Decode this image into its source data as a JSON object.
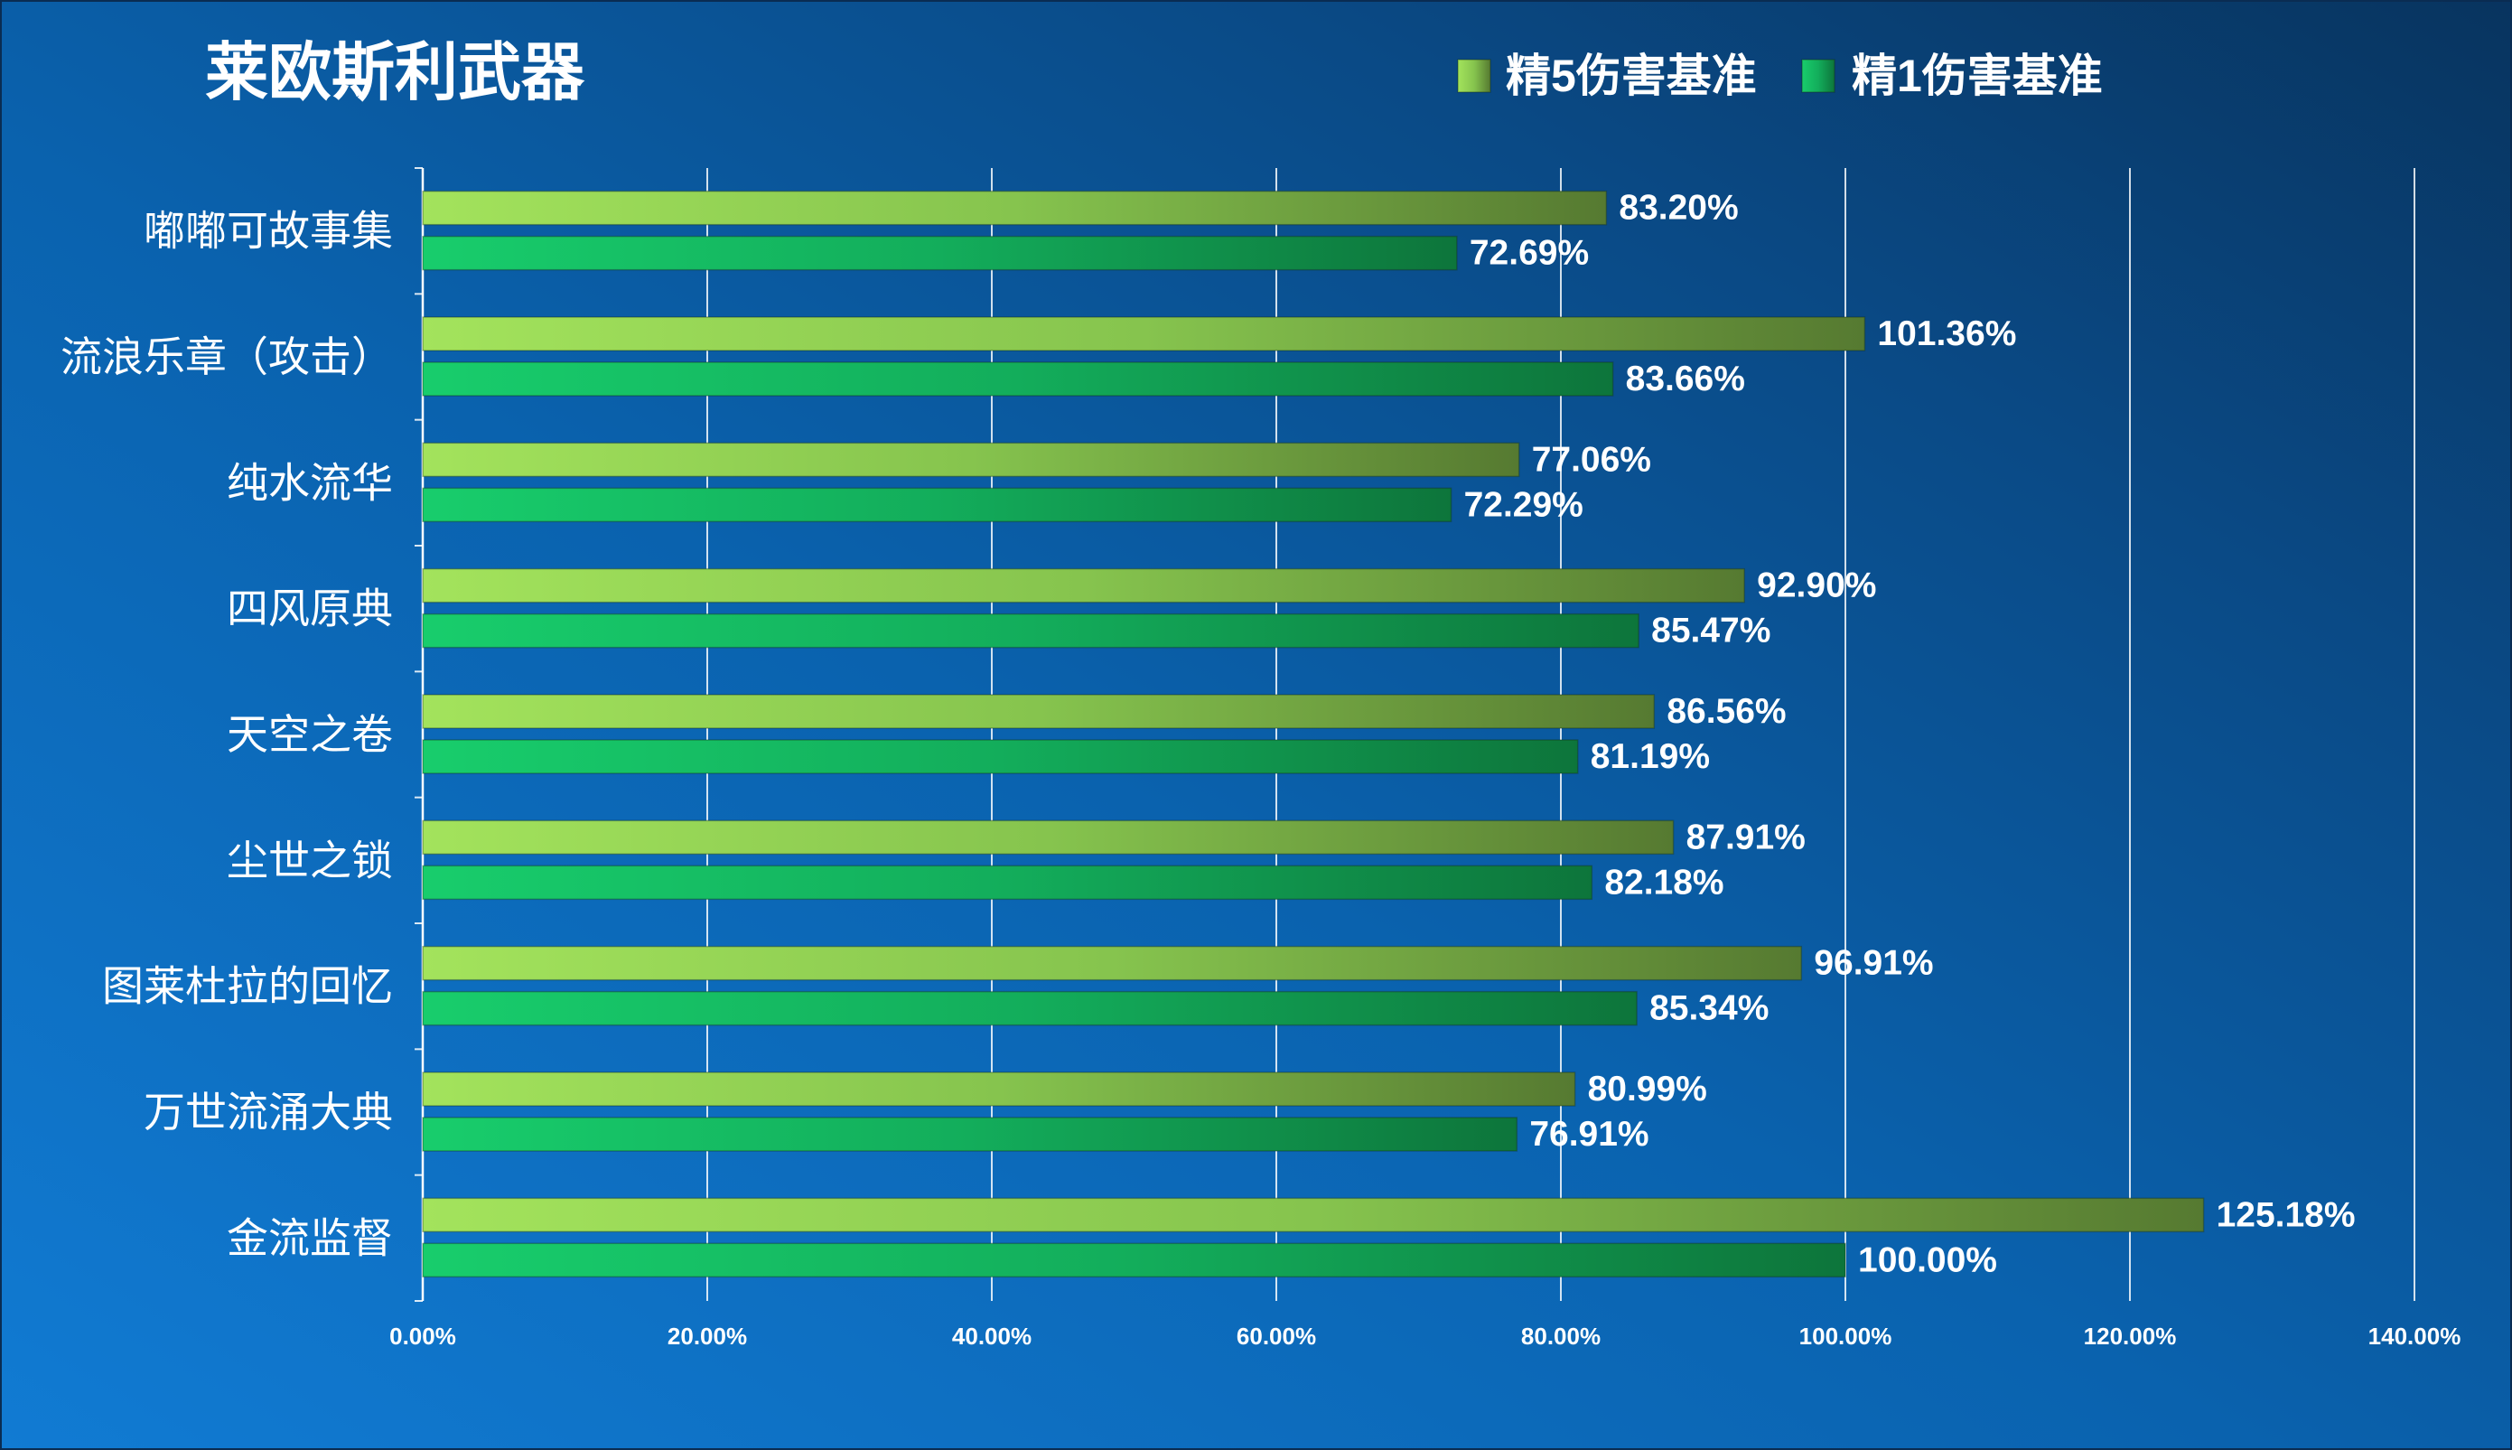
{
  "chart_data": {
    "type": "bar",
    "horizontal": true,
    "title": "莱欧斯利武器",
    "categories": [
      "嘟嘟可故事集",
      "流浪乐章（攻击）",
      "纯水流华",
      "四风原典",
      "天空之卷",
      "尘世之锁",
      "图莱杜拉的回忆",
      "万世流涌大典",
      "金流监督"
    ],
    "series": [
      {
        "name": "精5伤害基准",
        "values": [
          83.2,
          101.36,
          77.06,
          92.9,
          86.56,
          87.91,
          96.91,
          80.99,
          125.18
        ],
        "labels": [
          "83.20%",
          "101.36%",
          "77.06%",
          "92.90%",
          "86.56%",
          "87.91%",
          "96.91%",
          "80.99%",
          "125.18%"
        ],
        "color_start": "#a3e35c",
        "color_mid": "#86c44e",
        "color_end": "#567a31"
      },
      {
        "name": "精1伤害基准",
        "values": [
          72.69,
          83.66,
          72.29,
          85.47,
          81.19,
          82.18,
          85.34,
          76.91,
          100.0
        ],
        "labels": [
          "72.69%",
          "83.66%",
          "72.29%",
          "85.47%",
          "81.19%",
          "82.18%",
          "85.34%",
          "76.91%",
          "100.00%"
        ],
        "color_start": "#18cd6c",
        "color_mid": "#13ad5b",
        "color_end": "#0d753b"
      }
    ],
    "xlim": [
      0,
      140
    ],
    "xticks": [
      0,
      20,
      40,
      60,
      80,
      100,
      120,
      140
    ],
    "xtick_labels": [
      "0.00%",
      "20.00%",
      "40.00%",
      "60.00%",
      "80.00%",
      "100.00%",
      "120.00%",
      "140.00%"
    ],
    "grid": true,
    "legend": "top-right"
  },
  "colors": {
    "bg_bright": "#117bd3",
    "bg_mid": "#0a62ae",
    "bg_deep": "#0a4a86",
    "bg_dark": "#08345f",
    "text": "#ffffff"
  }
}
